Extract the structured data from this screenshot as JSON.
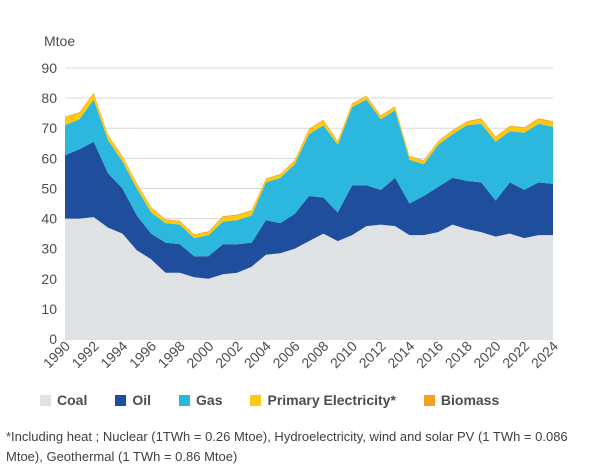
{
  "chart_data": {
    "type": "area",
    "stacked": true,
    "ylabel": "Mtoe",
    "ylim": [
      0,
      90
    ],
    "yticks": [
      0,
      10,
      20,
      30,
      40,
      50,
      60,
      70,
      80,
      90
    ],
    "grid": true,
    "legend_position": "bottom",
    "x": [
      1990,
      1991,
      1992,
      1993,
      1994,
      1995,
      1996,
      1997,
      1998,
      1999,
      2000,
      2001,
      2002,
      2003,
      2004,
      2005,
      2006,
      2007,
      2008,
      2009,
      2010,
      2011,
      2012,
      2013,
      2014,
      2015,
      2016,
      2017,
      2018,
      2019,
      2020,
      2021,
      2022,
      2023,
      2024
    ],
    "xtick_labels": [
      "1990",
      "1992",
      "1994",
      "1996",
      "1998",
      "2000",
      "2002",
      "2004",
      "2006",
      "2008",
      "2010",
      "2012",
      "2014",
      "2016",
      "2018",
      "2020",
      "2022",
      "2024"
    ],
    "series": [
      {
        "name": "Coal",
        "color": "#dfe3e5",
        "values": [
          40,
          40,
          40.5,
          37,
          35,
          29.5,
          26.5,
          22,
          22,
          20.5,
          20,
          21.5,
          22,
          24,
          28,
          28.5,
          30,
          32.5,
          35,
          32.5,
          34.5,
          37.5,
          38,
          37.5,
          34.5,
          34.5,
          35.5,
          38,
          36.5,
          35.5,
          34,
          35,
          33.5,
          34.5,
          34.5
        ]
      },
      {
        "name": "Oil",
        "color": "#1f4e9c",
        "values": [
          21,
          23,
          25,
          18,
          15,
          11.5,
          8.5,
          10,
          9.5,
          7,
          7.5,
          10,
          9.5,
          8,
          11.5,
          10,
          11.5,
          15,
          12,
          9.5,
          16.5,
          13.5,
          11.5,
          16,
          10.5,
          13,
          15,
          15.5,
          16,
          16.5,
          12,
          17,
          16,
          17.5,
          17
        ]
      },
      {
        "name": "Gas",
        "color": "#2cb7df",
        "values": [
          10,
          10,
          14,
          11,
          9,
          9,
          7,
          6.5,
          6.5,
          6,
          7,
          7.5,
          8,
          9,
          12.5,
          15,
          16.5,
          20.5,
          24,
          22.5,
          26,
          28.5,
          23.5,
          22.5,
          14.5,
          10.5,
          14,
          14.5,
          18.5,
          19.5,
          19.5,
          17,
          19,
          19.5,
          19
        ]
      },
      {
        "name": "Primary Electricity*",
        "color": "#ffc90e",
        "values": [
          2.5,
          2,
          2,
          1.5,
          1.5,
          1.5,
          1.5,
          1,
          1,
          1,
          1,
          1.5,
          1.5,
          1.5,
          1,
          1,
          1,
          1.5,
          1.5,
          1,
          1,
          1,
          1,
          1,
          1,
          1,
          1,
          1,
          1,
          1.5,
          1.5,
          1.5,
          1.5,
          1.5,
          1.5
        ]
      },
      {
        "name": "Biomass",
        "color": "#f0a320",
        "values": [
          0.3,
          0.3,
          0.3,
          0.3,
          0.3,
          0.3,
          0.3,
          0.3,
          0.3,
          0.3,
          0.3,
          0.3,
          0.3,
          0.3,
          0.3,
          0.3,
          0.3,
          0.3,
          0.3,
          0.3,
          0.3,
          0.3,
          0.3,
          0.3,
          0.3,
          0.3,
          0.3,
          0.3,
          0.3,
          0.3,
          0.3,
          0.3,
          0.3,
          0.3,
          0.3
        ]
      }
    ]
  },
  "footnote": "*Including heat ; Nuclear (1TWh = 0.26 Mtoe), Hydroelectricity, wind and solar PV (1 TWh = 0.086 Mtoe), Geothermal (1 TWh = 0.86 Mtoe)"
}
